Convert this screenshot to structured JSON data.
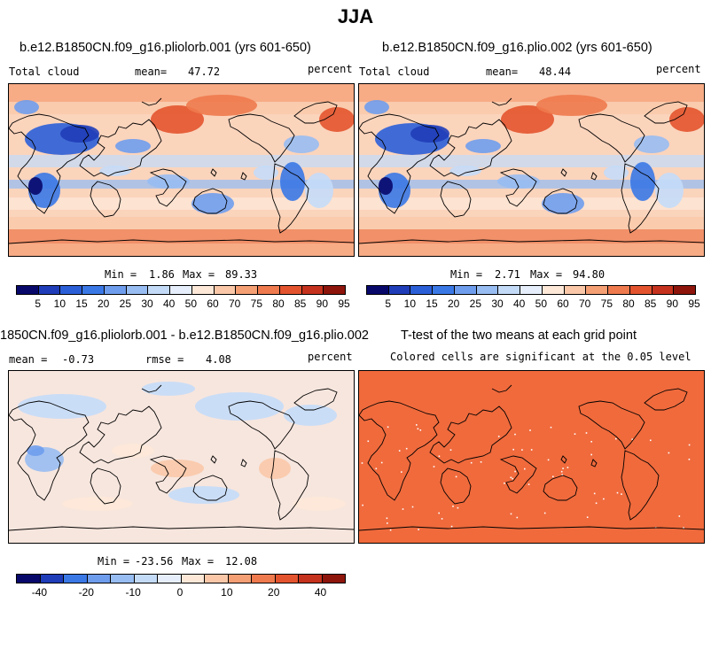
{
  "title": "JJA",
  "panels": [
    {
      "heading": "b.e12.B1850CN.f09_g16.pliolorb.001 (yrs 601-650)",
      "left_label": "Total cloud",
      "mean_label": "mean=",
      "mean_value": "47.72",
      "units": "percent",
      "min_label": "Min =",
      "min_value": "1.86",
      "max_label": "Max =",
      "max_value": "89.33",
      "map_name": "total-cloud-pliolorb-map"
    },
    {
      "heading": "b.e12.B1850CN.f09_g16.plio.002 (yrs 601-650)",
      "left_label": "Total cloud",
      "mean_label": "mean=",
      "mean_value": "48.44",
      "units": "percent",
      "min_label": "Min =",
      "min_value": "2.71",
      "max_label": "Max =",
      "max_value": "94.80",
      "map_name": "total-cloud-plio-map"
    },
    {
      "heading": "1850CN.f09_g16.pliolorb.001 - b.e12.B1850CN.f09_g16.plio.002",
      "mean_label": "mean =",
      "mean_value": "-0.73",
      "rmse_label": "rmse =",
      "rmse_value": "4.08",
      "units": "percent",
      "min_label": "Min =",
      "min_value": "-23.56",
      "max_label": "Max =",
      "max_value": "12.08",
      "map_name": "difference-map"
    },
    {
      "heading": "T-test of the two means at each grid point",
      "subheading": "Colored cells are significant at the 0.05 level",
      "map_name": "t-test-significance-map"
    }
  ],
  "colorbar_abs": {
    "colors": [
      "#08086b",
      "#1f3db8",
      "#2b5fd8",
      "#3a78e6",
      "#6f9ded",
      "#98bdf2",
      "#c4dbf8",
      "#e6eefb",
      "#fde8d8",
      "#fac8a8",
      "#f59f74",
      "#ee7a4e",
      "#e3542e",
      "#c5321d",
      "#8e150b"
    ],
    "ticks": [
      "5",
      "10",
      "15",
      "20",
      "25",
      "30",
      "40",
      "50",
      "60",
      "70",
      "75",
      "80",
      "85",
      "90",
      "95"
    ]
  },
  "colorbar_diff": {
    "colors": [
      "#08086b",
      "#1f3db8",
      "#3a78e6",
      "#6f9ded",
      "#98bdf2",
      "#c4dbf8",
      "#e6eefb",
      "#fde8d8",
      "#fac8a8",
      "#f59f74",
      "#ee7a4e",
      "#e3542e",
      "#c5321d",
      "#8e150b"
    ],
    "ticks": [
      "-40",
      "-20",
      "-10",
      "0",
      "10",
      "20",
      "40"
    ]
  },
  "colors": {
    "ocean_base": "#fbd4bc",
    "ttest_fill": "#f06a3c",
    "diff_base": "#f7e6de"
  }
}
